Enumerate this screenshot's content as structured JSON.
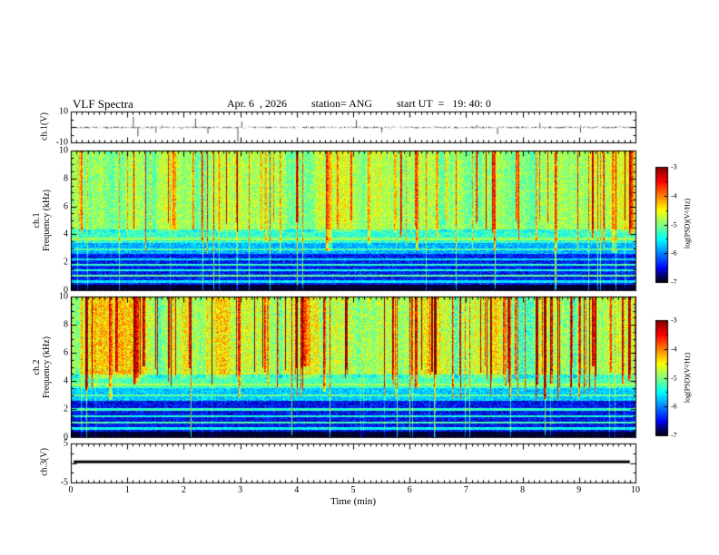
{
  "header": {
    "title": "VLF Spectra",
    "date": "Apr. 6  , 2026",
    "station": "station= ANG",
    "start_ut": "start UT  =   19: 40: 0"
  },
  "panels": {
    "ch1_wave": {
      "label": "ch.1(V)",
      "yticks": [
        10,
        -10
      ]
    },
    "ch1_spec": {
      "channel": "ch.1",
      "ylabel": "Frequency (kHz)",
      "yticks": [
        0,
        2,
        4,
        6,
        8,
        10
      ]
    },
    "ch2_spec": {
      "channel": "ch.2",
      "ylabel": "Frequency (kHz)",
      "yticks": [
        0,
        2,
        4,
        6,
        8,
        10
      ]
    },
    "ch3_wave": {
      "label": "ch.3(V)",
      "yticks": [
        5,
        -5
      ]
    }
  },
  "xaxis": {
    "label": "Time (min)",
    "min": 0,
    "max": 10,
    "ticks": [
      0,
      1,
      2,
      3,
      4,
      5,
      6,
      7,
      8,
      9,
      10
    ]
  },
  "colorbar": {
    "label": "log(PSD)(V²/Hz)",
    "min": -7,
    "max": -3,
    "ticks": [
      -3,
      -4,
      -5,
      -6,
      -7
    ]
  },
  "chart_data": [
    {
      "type": "line",
      "name": "ch1_waveform",
      "title": "ch.1(V)",
      "xlim": [
        0,
        10
      ],
      "ylim": [
        -10,
        10
      ],
      "noise_amplitude_V": 0.6,
      "spikes": [
        {
          "x": 1.1,
          "y": 7
        },
        {
          "x": 1.18,
          "y": -6
        },
        {
          "x": 1.5,
          "y": -3.5
        },
        {
          "x": 2.2,
          "y": 6
        },
        {
          "x": 2.42,
          "y": -4
        },
        {
          "x": 2.95,
          "y": -9.5
        },
        {
          "x": 3.02,
          "y": 4
        },
        {
          "x": 5.05,
          "y": 5
        },
        {
          "x": 5.5,
          "y": -3.5
        },
        {
          "x": 7.55,
          "y": -4.5
        },
        {
          "x": 8.3,
          "y": 3
        },
        {
          "x": 9.02,
          "y": -3.5
        }
      ]
    },
    {
      "type": "heatmap",
      "name": "ch1_spectrogram",
      "xlabel": "Time (min)",
      "ylabel": "Frequency (kHz)",
      "xlim": [
        0,
        10
      ],
      "ylim": [
        0,
        10
      ],
      "zlim": [
        -7,
        -3
      ],
      "zlabel": "log(PSD)(V²/Hz)",
      "bands": [
        {
          "f0": 0.0,
          "f1": 0.4,
          "v": -6.9,
          "noise": 0.15
        },
        {
          "f0": 0.4,
          "f1": 2.6,
          "v": -6.4,
          "noise": 0.35
        },
        {
          "f0": 2.6,
          "f1": 3.4,
          "v": -5.8,
          "noise": 0.35
        },
        {
          "f0": 3.4,
          "f1": 4.4,
          "v": -5.3,
          "noise": 0.4
        },
        {
          "f0": 4.4,
          "f1": 10.01,
          "v": -4.85,
          "noise": 0.42
        }
      ],
      "tones": [
        {
          "f": 0.65,
          "v": -5.6
        },
        {
          "f": 1.05,
          "v": -5.1
        },
        {
          "f": 1.45,
          "v": -5.4
        },
        {
          "f": 1.85,
          "v": -5.3
        },
        {
          "f": 2.25,
          "v": -5.6
        },
        {
          "f": 2.95,
          "v": -5.2
        },
        {
          "f": 3.7,
          "v": -4.9
        }
      ],
      "mod": 0.4,
      "streaks": {
        "prob": 0.1,
        "fmin": 2.6,
        "boost_min": 0.6,
        "boost_max": 1.7,
        "full_prob": 0.045,
        "full_boost": 1.0
      }
    },
    {
      "type": "heatmap",
      "name": "ch2_spectrogram",
      "xlabel": "Time (min)",
      "ylabel": "Frequency (kHz)",
      "xlim": [
        0,
        10
      ],
      "ylim": [
        0,
        10
      ],
      "zlim": [
        -7,
        -3
      ],
      "zlabel": "log(PSD)(V²/Hz)",
      "bands": [
        {
          "f0": 0.0,
          "f1": 0.4,
          "v": -6.9,
          "noise": 0.15
        },
        {
          "f0": 0.4,
          "f1": 2.6,
          "v": -6.45,
          "noise": 0.35
        },
        {
          "f0": 2.6,
          "f1": 3.5,
          "v": -5.7,
          "noise": 0.35
        },
        {
          "f0": 3.5,
          "f1": 4.5,
          "v": -5.2,
          "noise": 0.4
        },
        {
          "f0": 4.5,
          "f1": 10.01,
          "v": -4.7,
          "noise": 0.5
        }
      ],
      "tones": [
        {
          "f": 0.65,
          "v": -5.5
        },
        {
          "f": 1.05,
          "v": -5.2
        },
        {
          "f": 1.5,
          "v": -5.4
        },
        {
          "f": 2.0,
          "v": -5.3
        },
        {
          "f": 3.0,
          "v": -5.1
        },
        {
          "f": 3.8,
          "v": -4.8
        }
      ],
      "mod": 0.6,
      "streaks": {
        "prob": 0.15,
        "fmin": 2.6,
        "boost_min": 0.9,
        "boost_max": 2.2,
        "full_prob": 0.05,
        "full_boost": 1.1
      }
    },
    {
      "type": "line",
      "name": "ch3_waveform",
      "title": "ch.3(V)",
      "xlim": [
        0,
        10
      ],
      "ylim": [
        -5,
        5
      ],
      "value": 0.3,
      "x_extent": [
        0.05,
        9.9
      ]
    }
  ]
}
